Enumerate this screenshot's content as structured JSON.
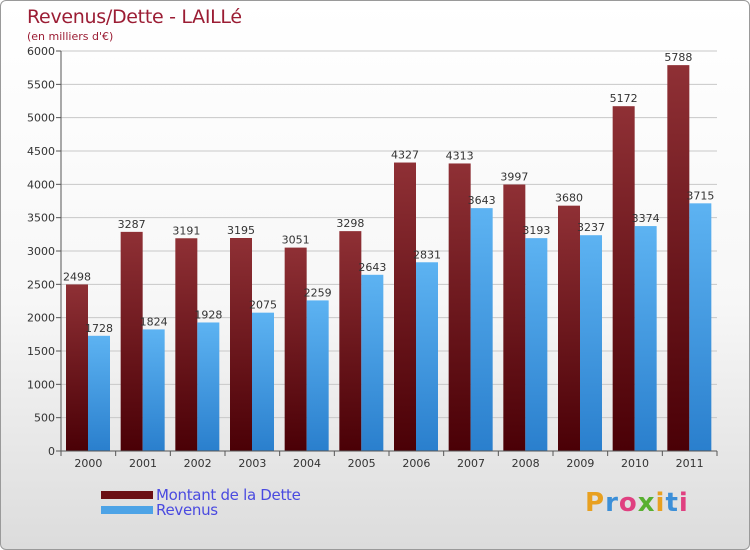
{
  "header": {
    "title": "Revenus/Dette - LAILLé",
    "subtitle": "(en milliers d'€)"
  },
  "legend": {
    "items": [
      {
        "label": "Montant de la Dette",
        "color": "#6b0f14"
      },
      {
        "label": "Revenus",
        "color": "#4da3e6"
      }
    ]
  },
  "brand": {
    "logo_text": "Proxiti"
  },
  "chart_data": {
    "type": "bar",
    "title": "Revenus/Dette - LAILLé",
    "subtitle": "(en milliers d'€)",
    "categories": [
      "2000",
      "2001",
      "2002",
      "2003",
      "2004",
      "2005",
      "2006",
      "2007",
      "2008",
      "2009",
      "2010",
      "2011"
    ],
    "series": [
      {
        "name": "Montant de la Dette",
        "color": "#7a1a1f",
        "values": [
          2498,
          3287,
          3191,
          3195,
          3051,
          3298,
          4327,
          4313,
          3997,
          3680,
          5172,
          5788
        ]
      },
      {
        "name": "Revenus",
        "color": "#4da3e6",
        "values": [
          1728,
          1824,
          1928,
          2075,
          2259,
          2643,
          2831,
          3643,
          3193,
          3237,
          3374,
          3715
        ]
      }
    ],
    "ylim": [
      0,
      6000
    ],
    "yticks": [
      0,
      500,
      1000,
      1500,
      2000,
      2500,
      3000,
      3500,
      4000,
      4500,
      5000,
      5500,
      6000
    ],
    "grid": true,
    "legend_position": "bottom-left"
  }
}
